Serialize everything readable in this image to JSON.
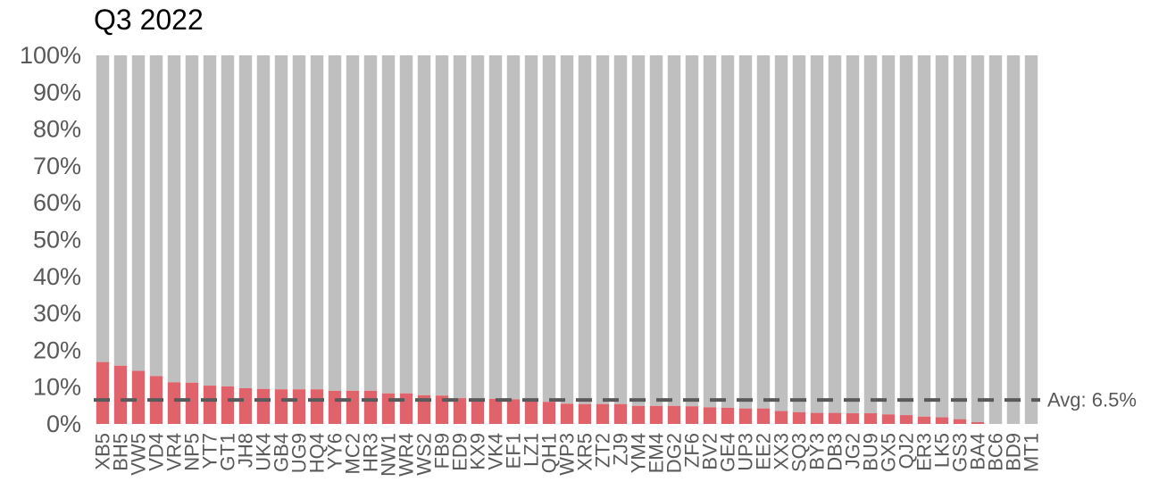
{
  "chart_data": {
    "type": "bar",
    "title": "Q3 2022",
    "xlabel": "",
    "ylabel": "",
    "ylim": [
      0,
      100
    ],
    "y_ticks": [
      "0%",
      "10%",
      "20%",
      "30%",
      "40%",
      "50%",
      "60%",
      "70%",
      "80%",
      "90%",
      "100%"
    ],
    "stacked": true,
    "grid": false,
    "colors": {
      "value": "#e0636c",
      "remainder": "#bfbfbf",
      "average_line": "#595959"
    },
    "categories": [
      "XB5",
      "BH5",
      "VW5",
      "VD4",
      "VR4",
      "NP5",
      "YT7",
      "GT1",
      "JH8",
      "UK4",
      "GB4",
      "UG9",
      "HQ4",
      "YY6",
      "MC2",
      "HR3",
      "NW1",
      "WR4",
      "WS2",
      "FB9",
      "ED9",
      "KX9",
      "VK4",
      "EF1",
      "LZ1",
      "QH1",
      "WP3",
      "XR5",
      "ZT2",
      "ZJ9",
      "YM4",
      "EM4",
      "DG2",
      "ZF6",
      "BV2",
      "GE4",
      "UP3",
      "EE2",
      "XX3",
      "SQ3",
      "BY3",
      "DB3",
      "JG2",
      "BU9",
      "GX5",
      "QJ2",
      "ER3",
      "LK5",
      "GS3",
      "BA4",
      "BC6",
      "BD9",
      "MT1"
    ],
    "values": [
      16.8,
      15.8,
      14.4,
      13.0,
      11.3,
      11.2,
      10.4,
      10.2,
      9.7,
      9.5,
      9.4,
      9.4,
      9.4,
      9.0,
      9.0,
      9.0,
      8.3,
      8.3,
      7.8,
      7.7,
      7.0,
      6.9,
      6.8,
      6.7,
      6.4,
      6.0,
      5.5,
      5.4,
      5.4,
      5.4,
      4.9,
      4.9,
      4.9,
      4.8,
      4.5,
      4.4,
      4.2,
      4.2,
      3.5,
      3.2,
      3.0,
      3.0,
      2.9,
      2.9,
      2.6,
      2.4,
      2.0,
      1.8,
      1.3,
      0.5,
      0,
      0,
      0
    ],
    "average": 6.5,
    "average_label": "Avg: 6.5%"
  }
}
